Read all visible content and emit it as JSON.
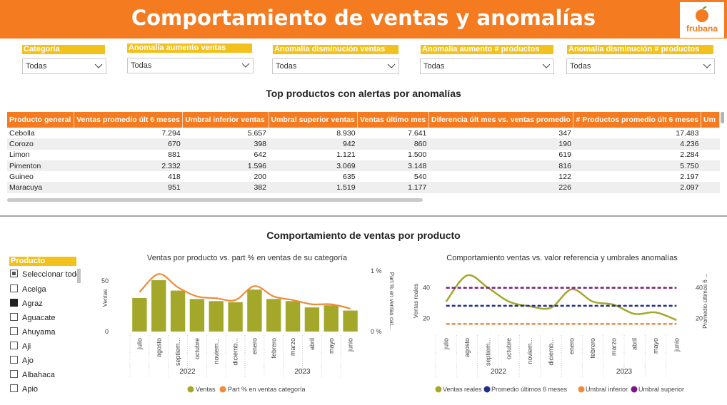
{
  "header": {
    "title": "Comportamiento de ventas y anomalías",
    "logo_text": "frubana",
    "colors": {
      "brand": "#f47b20",
      "label_bg": "#f3c11b"
    }
  },
  "filters": [
    {
      "label": "Categoría",
      "value": "Todas"
    },
    {
      "label": "Anomalía aumento ventas",
      "value": "Todas"
    },
    {
      "label": "Anomalía disminución ventas",
      "value": "Todas"
    },
    {
      "label": "Anomalía aumento # productos",
      "value": "Todas"
    },
    {
      "label": "Anomalía disminución # productos",
      "value": "Todas"
    }
  ],
  "table_section": {
    "title": "Top productos con alertas por anomalías",
    "columns": [
      "Producto general",
      "Ventas promedio últ 6 meses",
      "Umbral inferior ventas",
      "Umbral superior ventas",
      "Ventas último mes",
      "Diferencia últ mes vs. ventas promedio",
      "# Productos promedio últ 6 meses",
      "Um"
    ],
    "rows": [
      [
        "Cebolla",
        "7.294",
        "5.657",
        "8.930",
        "7.641",
        "347",
        "17.483"
      ],
      [
        "Corozo",
        "670",
        "398",
        "942",
        "860",
        "190",
        "4.236"
      ],
      [
        "Limon",
        "881",
        "642",
        "1.121",
        "1.500",
        "619",
        "2.284"
      ],
      [
        "Pimenton",
        "2.332",
        "1.596",
        "3.069",
        "3.148",
        "816",
        "5.750"
      ],
      [
        "Guineo",
        "418",
        "200",
        "635",
        "540",
        "122",
        "2.197"
      ],
      [
        "Maracuya",
        "951",
        "382",
        "1.519",
        "1.177",
        "226",
        "2.097"
      ]
    ]
  },
  "product_section": {
    "title": "Comportamiento de ventas por producto"
  },
  "slicer": {
    "title": "Producto",
    "items": [
      {
        "label": "Seleccionar todo",
        "state": "partial"
      },
      {
        "label": "Acelga",
        "state": "unchecked"
      },
      {
        "label": "Agraz",
        "state": "checked"
      },
      {
        "label": "Aguacate",
        "state": "unchecked"
      },
      {
        "label": "Ahuyama",
        "state": "unchecked"
      },
      {
        "label": "Aji",
        "state": "unchecked"
      },
      {
        "label": "Ajo",
        "state": "unchecked"
      },
      {
        "label": "Albahaca",
        "state": "unchecked"
      },
      {
        "label": "Apio",
        "state": "unchecked"
      }
    ]
  },
  "chart_data": [
    {
      "type": "bar",
      "title": "Ventas por producto vs. part % en ventas de su categoría",
      "categories": [
        "julio",
        "agosto",
        "septiem...",
        "octubre",
        "noviem...",
        "diciemb...",
        "enero",
        "febrero",
        "marzo",
        "abril",
        "mayo",
        "junio"
      ],
      "year_labels": [
        "2022",
        "2023"
      ],
      "series": [
        {
          "name": "Ventas",
          "kind": "bar",
          "color": "#a3a82a",
          "values": [
            32,
            49,
            39,
            31,
            29,
            28,
            40,
            31,
            29,
            23,
            25,
            20
          ]
        },
        {
          "name": "Part % en ventas categoría",
          "kind": "line",
          "color": "#f08a3c",
          "axis": "right",
          "values": [
            0.65,
            0.95,
            0.73,
            0.58,
            0.55,
            0.52,
            0.75,
            0.58,
            0.52,
            0.45,
            0.45,
            0.38
          ]
        }
      ],
      "ylabel": "Ventas",
      "y2label": "Part % en ventas cat...",
      "ylim": [
        0,
        55
      ],
      "yticks": [
        "0",
        "50"
      ],
      "y2lim": [
        0,
        1.0
      ],
      "y2ticks": [
        "0 %",
        "1 %"
      ]
    },
    {
      "type": "line",
      "title": "Comportamiento ventas vs. valor referencia y umbrales anomalías",
      "categories": [
        "julio",
        "agosto",
        "septiem...",
        "octubre",
        "noviem...",
        "diciemb...",
        "enero",
        "febrero",
        "marzo",
        "abril",
        "mayo",
        "junio"
      ],
      "year_labels": [
        "2022",
        "2023"
      ],
      "series": [
        {
          "name": "Ventas reales",
          "color": "#a3a82a",
          "style": "solid",
          "values": [
            31,
            48,
            40,
            31,
            28,
            27,
            39,
            31,
            29,
            23,
            24,
            19
          ]
        },
        {
          "name": "Promedio últimos 6 meses",
          "color": "#1f2f8a",
          "style": "dashed",
          "values": [
            28.3,
            28.3,
            28.3,
            28.3,
            28.3,
            28.3,
            28.3,
            28.3,
            28.3,
            28.3,
            28.3,
            28.3
          ]
        },
        {
          "name": "Umbral inferior",
          "color": "#f08a3c",
          "style": "dashed",
          "values": [
            16.5,
            16.5,
            16.5,
            16.5,
            16.5,
            16.5,
            16.5,
            16.5,
            16.5,
            16.5,
            16.5,
            16.5
          ]
        },
        {
          "name": "Umbral superior",
          "color": "#7b1a7e",
          "style": "dashed",
          "values": [
            40,
            40,
            40,
            40,
            40,
            40,
            40,
            40,
            40,
            40,
            40,
            40
          ]
        }
      ],
      "ylabel": "Ventas reales",
      "y2label": "Promedio últimos 6 ...",
      "ylim": [
        12,
        50
      ],
      "yticks": [
        "20",
        "40"
      ],
      "y2ticks": [
        "20",
        "40"
      ]
    }
  ]
}
